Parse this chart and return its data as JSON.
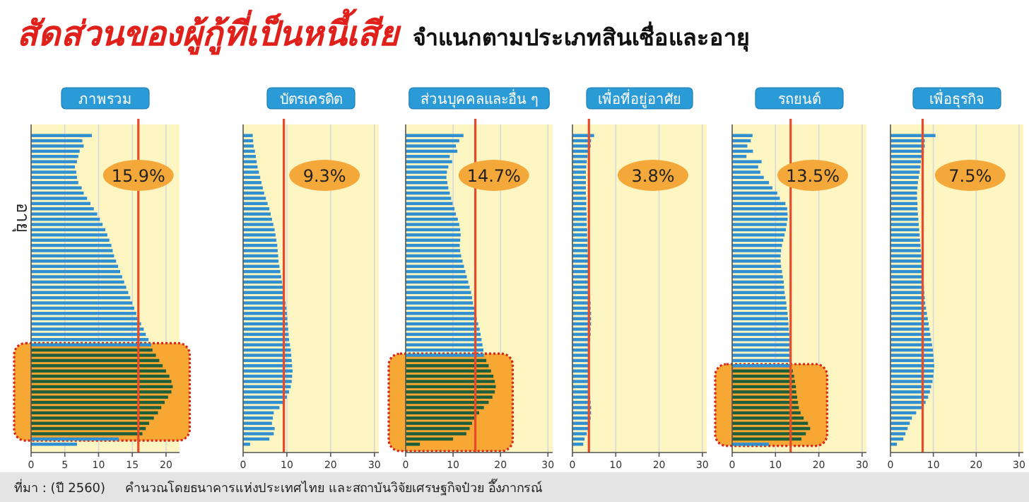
{
  "chart_data": [
    {
      "type": "bar",
      "orientation": "horizontal",
      "title": "ภาพรวม",
      "ylabel": "อายุ",
      "annotations": [
        "สัดส่วนของผู้กู้ที่เป็นหนี้เสีย",
        "จำแนกตามประเภทสินเชื่อและอายุ",
        "ที่มา : (ปี 2560)",
        "คำนวณโดยธนาคารแห่งประเทศไทย และสถาบันวิจัยเศรษฐกิจป๋วย อึ๊งภากรณ์"
      ],
      "categories": [
        null,
        null,
        null,
        null,
        null,
        null,
        null,
        null,
        null,
        null,
        null,
        null,
        null,
        null,
        null,
        null,
        null,
        null,
        null,
        null,
        null,
        null,
        null,
        null,
        null,
        null,
        null,
        null,
        null,
        null,
        null,
        null,
        null,
        null,
        null,
        null,
        null,
        null,
        null,
        null,
        null,
        null,
        null,
        null,
        null,
        null,
        null,
        null,
        null,
        null,
        null,
        null,
        null,
        null,
        null,
        null,
        null,
        null,
        null,
        null
      ],
      "values": [
        9.0,
        7.6,
        7.8,
        7.2,
        7.0,
        6.8,
        6.5,
        6.7,
        6.8,
        7.0,
        7.5,
        7.8,
        8.3,
        8.8,
        9.3,
        9.8,
        10.2,
        10.6,
        11.0,
        11.3,
        11.6,
        11.9,
        12.1,
        12.3,
        12.6,
        12.9,
        13.2,
        13.5,
        13.8,
        14.1,
        14.4,
        14.7,
        15.0,
        15.3,
        15.6,
        15.9,
        16.3,
        16.7,
        17.0,
        17.4,
        17.8,
        18.0,
        18.5,
        19.0,
        19.5,
        20.0,
        20.5,
        20.8,
        21.0,
        20.8,
        20.3,
        19.8,
        19.3,
        18.8,
        18.2,
        17.5,
        17.0,
        16.5,
        13.0,
        6.8
      ],
      "colors": [
        "#2f8fd1",
        "#2f8fd1",
        "#2f8fd1",
        "#2f8fd1",
        "#2f8fd1",
        "#2f8fd1",
        "#2f8fd1",
        "#2f8fd1",
        "#2f8fd1",
        "#2f8fd1",
        "#2f8fd1",
        "#2f8fd1",
        "#2f8fd1",
        "#2f8fd1",
        "#2f8fd1",
        "#2f8fd1",
        "#2f8fd1",
        "#2f8fd1",
        "#2f8fd1",
        "#2f8fd1",
        "#2f8fd1",
        "#2f8fd1",
        "#2f8fd1",
        "#2f8fd1",
        "#2f8fd1",
        "#2f8fd1",
        "#2f8fd1",
        "#2f8fd1",
        "#2f8fd1",
        "#2f8fd1",
        "#2f8fd1",
        "#2f8fd1",
        "#2f8fd1",
        "#2f8fd1",
        "#2f8fd1",
        "#2f8fd1",
        "#2f8fd1",
        "#2f8fd1",
        "#2f8fd1",
        "#2f8fd1",
        "#2f8fd1",
        "#1f5e3b",
        "#1f5e3b",
        "#1f5e3b",
        "#1f5e3b",
        "#1f5e3b",
        "#1f5e3b",
        "#1f5e3b",
        "#1f5e3b",
        "#1f5e3b",
        "#1f5e3b",
        "#1f5e3b",
        "#1f5e3b",
        "#1f5e3b",
        "#1f5e3b",
        "#1f5e3b",
        "#1f5e3b",
        "#1f5e3b",
        "#2f8fd1",
        "#2f8fd1"
      ],
      "xlim": [
        0,
        22
      ],
      "xticks": [
        0,
        5,
        10,
        15,
        20
      ],
      "grid": "x",
      "ref_lines": [
        {
          "axis": "x",
          "value": 15.9,
          "label": "15.9%",
          "color": "#e84a2a"
        }
      ]
    },
    {
      "type": "bar",
      "orientation": "horizontal",
      "title": "บัตรเครดิต",
      "categories": [
        null,
        null,
        null,
        null,
        null,
        null,
        null,
        null,
        null,
        null,
        null,
        null,
        null,
        null,
        null,
        null,
        null,
        null,
        null,
        null,
        null,
        null,
        null,
        null,
        null,
        null,
        null,
        null,
        null,
        null,
        null,
        null,
        null,
        null,
        null,
        null,
        null,
        null,
        null,
        null,
        null,
        null,
        null,
        null,
        null,
        null,
        null,
        null,
        null,
        null,
        null,
        null,
        null,
        null,
        null,
        null,
        null,
        null,
        null,
        null
      ],
      "values": [
        2.2,
        2.3,
        2.4,
        2.7,
        2.9,
        3.1,
        3.3,
        3.6,
        3.9,
        4.2,
        4.5,
        4.8,
        5.2,
        5.6,
        6.0,
        6.3,
        6.6,
        6.9,
        7.2,
        7.4,
        7.6,
        7.8,
        7.9,
        8.0,
        8.1,
        8.3,
        8.5,
        8.7,
        8.9,
        9.1,
        9.3,
        9.5,
        9.7,
        9.9,
        10.0,
        10.1,
        10.2,
        10.3,
        10.4,
        10.5,
        10.7,
        10.9,
        11.0,
        11.1,
        11.2,
        11.3,
        11.2,
        11.1,
        10.9,
        10.5,
        10.0,
        9.2,
        8.3,
        7.0,
        6.8,
        6.6,
        7.2,
        7.0,
        6.0,
        1.6
      ],
      "color": "#2f8fd1",
      "xlim": [
        0,
        31
      ],
      "xticks": [
        0,
        10,
        20,
        30
      ],
      "grid": "x",
      "ref_lines": [
        {
          "axis": "x",
          "value": 9.3,
          "label": "9.3%",
          "color": "#e84a2a"
        }
      ]
    },
    {
      "type": "bar",
      "orientation": "horizontal",
      "title": "ส่วนบุคคลและอื่น ๆ",
      "categories": [
        null,
        null,
        null,
        null,
        null,
        null,
        null,
        null,
        null,
        null,
        null,
        null,
        null,
        null,
        null,
        null,
        null,
        null,
        null,
        null,
        null,
        null,
        null,
        null,
        null,
        null,
        null,
        null,
        null,
        null,
        null,
        null,
        null,
        null,
        null,
        null,
        null,
        null,
        null,
        null,
        null,
        null,
        null,
        null,
        null,
        null,
        null,
        null,
        null,
        null,
        null,
        null,
        null,
        null,
        null,
        null,
        null,
        null,
        null,
        null
      ],
      "values": [
        12.2,
        11.3,
        10.6,
        10.9,
        9.3,
        9.8,
        9.0,
        8.7,
        8.6,
        8.8,
        9.0,
        9.3,
        9.6,
        9.9,
        10.3,
        10.6,
        11.0,
        11.3,
        11.5,
        11.6,
        11.5,
        11.4,
        11.5,
        11.7,
        12.0,
        12.3,
        12.6,
        12.9,
        13.2,
        13.5,
        13.8,
        14.0,
        14.2,
        14.5,
        14.8,
        15.0,
        15.3,
        15.6,
        15.8,
        16.0,
        16.2,
        16.4,
        16.5,
        17.0,
        17.5,
        18.0,
        18.5,
        18.8,
        19.0,
        18.8,
        18.3,
        17.5,
        16.5,
        15.5,
        14.8,
        14.0,
        13.5,
        12.8,
        10.0,
        3.0
      ],
      "colors": [
        "#2f8fd1",
        "#2f8fd1",
        "#2f8fd1",
        "#2f8fd1",
        "#2f8fd1",
        "#2f8fd1",
        "#2f8fd1",
        "#2f8fd1",
        "#2f8fd1",
        "#2f8fd1",
        "#2f8fd1",
        "#2f8fd1",
        "#2f8fd1",
        "#2f8fd1",
        "#2f8fd1",
        "#2f8fd1",
        "#2f8fd1",
        "#2f8fd1",
        "#2f8fd1",
        "#2f8fd1",
        "#2f8fd1",
        "#2f8fd1",
        "#2f8fd1",
        "#2f8fd1",
        "#2f8fd1",
        "#2f8fd1",
        "#2f8fd1",
        "#2f8fd1",
        "#2f8fd1",
        "#2f8fd1",
        "#2f8fd1",
        "#2f8fd1",
        "#2f8fd1",
        "#2f8fd1",
        "#2f8fd1",
        "#2f8fd1",
        "#2f8fd1",
        "#2f8fd1",
        "#2f8fd1",
        "#2f8fd1",
        "#2f8fd1",
        "#2f8fd1",
        "#2f8fd1",
        "#1f5e3b",
        "#1f5e3b",
        "#1f5e3b",
        "#1f5e3b",
        "#1f5e3b",
        "#1f5e3b",
        "#1f5e3b",
        "#1f5e3b",
        "#1f5e3b",
        "#1f5e3b",
        "#1f5e3b",
        "#1f5e3b",
        "#1f5e3b",
        "#1f5e3b",
        "#1f5e3b",
        "#1f5e3b",
        "#1f5e3b"
      ],
      "xlim": [
        0,
        31
      ],
      "xticks": [
        0,
        10,
        20,
        30
      ],
      "grid": "x",
      "ref_lines": [
        {
          "axis": "x",
          "value": 14.7,
          "label": "14.7%",
          "color": "#e84a2a"
        }
      ]
    },
    {
      "type": "bar",
      "orientation": "horizontal",
      "title": "เพื่อที่อยู่อาศัย",
      "categories": [
        null,
        null,
        null,
        null,
        null,
        null,
        null,
        null,
        null,
        null,
        null,
        null,
        null,
        null,
        null,
        null,
        null,
        null,
        null,
        null,
        null,
        null,
        null,
        null,
        null,
        null,
        null,
        null,
        null,
        null,
        null,
        null,
        null,
        null,
        null,
        null,
        null,
        null,
        null,
        null,
        null,
        null,
        null,
        null,
        null,
        null,
        null,
        null,
        null,
        null,
        null,
        null,
        null,
        null,
        null,
        null,
        null,
        null,
        null,
        null
      ],
      "values": [
        5.0,
        4.3,
        4.2,
        3.6,
        3.5,
        3.3,
        3.2,
        3.1,
        3.1,
        3.1,
        3.1,
        3.1,
        3.2,
        3.2,
        3.2,
        3.3,
        3.3,
        3.3,
        3.4,
        3.4,
        3.5,
        3.5,
        3.5,
        3.6,
        3.6,
        3.7,
        3.7,
        3.8,
        3.9,
        3.9,
        4.0,
        4.1,
        4.2,
        4.2,
        4.3,
        4.3,
        4.3,
        4.2,
        4.2,
        4.1,
        4.0,
        4.0,
        3.9,
        3.9,
        3.9,
        3.9,
        3.9,
        4.0,
        4.0,
        4.0,
        4.1,
        4.2,
        4.3,
        4.3,
        4.2,
        4.0,
        3.7,
        3.3,
        2.8,
        2.5
      ],
      "color": "#2f8fd1",
      "xlim": [
        0,
        31
      ],
      "xticks": [
        0,
        10,
        20,
        30
      ],
      "grid": "x",
      "ref_lines": [
        {
          "axis": "x",
          "value": 3.8,
          "label": "3.8%",
          "color": "#e84a2a"
        }
      ]
    },
    {
      "type": "bar",
      "orientation": "horizontal",
      "title": "รถยนต์",
      "categories": [
        null,
        null,
        null,
        null,
        null,
        null,
        null,
        null,
        null,
        null,
        null,
        null,
        null,
        null,
        null,
        null,
        null,
        null,
        null,
        null,
        null,
        null,
        null,
        null,
        null,
        null,
        null,
        null,
        null,
        null,
        null,
        null,
        null,
        null,
        null,
        null,
        null,
        null,
        null,
        null,
        null,
        null,
        null,
        null,
        null,
        null,
        null,
        null,
        null,
        null,
        null,
        null,
        null,
        null,
        null,
        null,
        null,
        null,
        null,
        null
      ],
      "values": [
        4.7,
        4.3,
        3.5,
        4.8,
        3.3,
        6.8,
        6.0,
        6.5,
        7.3,
        8.5,
        9.3,
        10.4,
        11.0,
        12.3,
        12.7,
        12.8,
        12.8,
        12.6,
        12.4,
        12.1,
        11.8,
        11.5,
        11.3,
        11.2,
        11.2,
        11.3,
        11.5,
        11.7,
        11.9,
        12.0,
        12.1,
        12.3,
        12.5,
        12.6,
        12.8,
        12.9,
        13.0,
        13.1,
        13.2,
        13.3,
        13.3,
        13.3,
        13.4,
        13.5,
        13.5,
        14.0,
        14.3,
        14.5,
        14.7,
        14.8,
        15.0,
        15.2,
        15.4,
        15.8,
        16.5,
        17.5,
        18.0,
        17.0,
        16.0,
        8.5
      ],
      "colors": [
        "#2f8fd1",
        "#2f8fd1",
        "#2f8fd1",
        "#2f8fd1",
        "#2f8fd1",
        "#2f8fd1",
        "#2f8fd1",
        "#2f8fd1",
        "#2f8fd1",
        "#2f8fd1",
        "#2f8fd1",
        "#2f8fd1",
        "#2f8fd1",
        "#2f8fd1",
        "#2f8fd1",
        "#2f8fd1",
        "#2f8fd1",
        "#2f8fd1",
        "#2f8fd1",
        "#2f8fd1",
        "#2f8fd1",
        "#2f8fd1",
        "#2f8fd1",
        "#2f8fd1",
        "#2f8fd1",
        "#2f8fd1",
        "#2f8fd1",
        "#2f8fd1",
        "#2f8fd1",
        "#2f8fd1",
        "#2f8fd1",
        "#2f8fd1",
        "#2f8fd1",
        "#2f8fd1",
        "#2f8fd1",
        "#2f8fd1",
        "#2f8fd1",
        "#2f8fd1",
        "#2f8fd1",
        "#2f8fd1",
        "#2f8fd1",
        "#2f8fd1",
        "#2f8fd1",
        "#2f8fd1",
        "#2f8fd1",
        "#1f5e3b",
        "#1f5e3b",
        "#1f5e3b",
        "#1f5e3b",
        "#1f5e3b",
        "#1f5e3b",
        "#1f5e3b",
        "#1f5e3b",
        "#1f5e3b",
        "#1f5e3b",
        "#1f5e3b",
        "#1f5e3b",
        "#1f5e3b",
        "#1f5e3b",
        "#2f8fd1"
      ],
      "xlim": [
        0,
        31
      ],
      "xticks": [
        0,
        10,
        20,
        30
      ],
      "grid": "x",
      "ref_lines": [
        {
          "axis": "x",
          "value": 13.5,
          "label": "13.5%",
          "color": "#e84a2a"
        }
      ]
    },
    {
      "type": "bar",
      "orientation": "horizontal",
      "title": "เพื่อธุรกิจ",
      "categories": [
        null,
        null,
        null,
        null,
        null,
        null,
        null,
        null,
        null,
        null,
        null,
        null,
        null,
        null,
        null,
        null,
        null,
        null,
        null,
        null,
        null,
        null,
        null,
        null,
        null,
        null,
        null,
        null,
        null,
        null,
        null,
        null,
        null,
        null,
        null,
        null,
        null,
        null,
        null,
        null,
        null,
        null,
        null,
        null,
        null,
        null,
        null,
        null,
        null,
        null,
        null,
        null,
        null,
        null,
        null,
        null,
        null,
        null,
        null,
        null
      ],
      "values": [
        10.5,
        8.0,
        8.0,
        7.8,
        7.3,
        7.1,
        7.0,
        6.8,
        6.6,
        6.4,
        6.3,
        6.2,
        6.2,
        6.3,
        6.3,
        6.4,
        6.5,
        6.6,
        6.7,
        6.8,
        6.9,
        7.0,
        7.1,
        7.2,
        7.3,
        7.4,
        7.5,
        7.6,
        7.7,
        7.8,
        7.9,
        8.0,
        8.1,
        8.3,
        8.5,
        8.7,
        8.9,
        9.1,
        9.3,
        9.5,
        9.7,
        9.9,
        10.0,
        10.1,
        10.2,
        10.1,
        10.0,
        9.8,
        9.5,
        9.2,
        8.8,
        8.2,
        7.6,
        6.0,
        5.0,
        4.5,
        4.0,
        3.5,
        3.0,
        1.5
      ],
      "color": "#2f8fd1",
      "xlim": [
        0,
        31
      ],
      "xticks": [
        0,
        10,
        20,
        30
      ],
      "grid": "x",
      "ref_lines": [
        {
          "axis": "x",
          "value": 7.5,
          "label": "7.5%",
          "color": "#e84a2a"
        }
      ]
    }
  ]
}
